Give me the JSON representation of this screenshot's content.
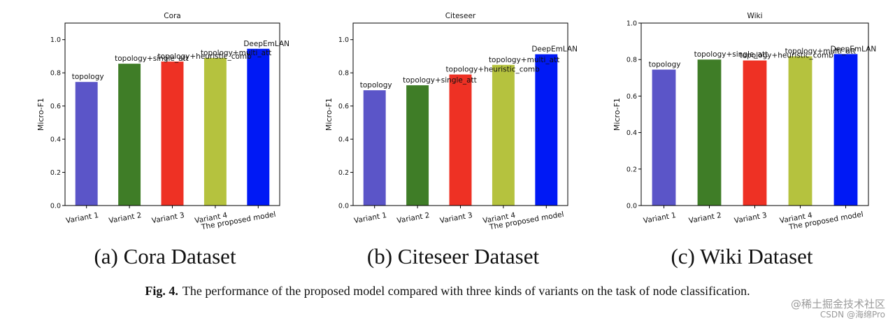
{
  "chart_data": [
    {
      "type": "bar",
      "title": "Cora",
      "ylabel": "Micro-F1",
      "xlabel": "",
      "ylim": [
        0,
        1.1
      ],
      "yticks": [
        "0.0",
        "0.2",
        "0.4",
        "0.6",
        "0.8",
        "1.0"
      ],
      "categories": [
        "Variant 1",
        "Variant 2",
        "Variant 3",
        "Variant 4",
        "The proposed model"
      ],
      "values": [
        0.745,
        0.855,
        0.868,
        0.89,
        0.945
      ],
      "bar_labels": [
        "topology",
        "topology+single_att",
        "topology+heuristic_comb",
        "topology+multi_att",
        "DeepEmLAN"
      ],
      "colors": [
        "#5b55c8",
        "#3f7d27",
        "#ee3124",
        "#b5c23e",
        "#0019f5"
      ],
      "subcaption": "(a)  Cora Dataset"
    },
    {
      "type": "bar",
      "title": "Citeseer",
      "ylabel": "Micro-F1",
      "xlabel": "",
      "ylim": [
        0,
        1.1
      ],
      "yticks": [
        "0.0",
        "0.2",
        "0.4",
        "0.6",
        "0.8",
        "1.0"
      ],
      "categories": [
        "Variant 1",
        "Variant 2",
        "Variant 3",
        "Variant 4",
        "The proposed model"
      ],
      "values": [
        0.695,
        0.725,
        0.79,
        0.848,
        0.912
      ],
      "bar_labels": [
        "topology",
        "topology+single_att",
        "topology+heuristic_comb",
        "topology+multi_att",
        "DeepEmLAN"
      ],
      "colors": [
        "#5b55c8",
        "#3f7d27",
        "#ee3124",
        "#b5c23e",
        "#0019f5"
      ],
      "subcaption": "(b)  Citeseer Dataset"
    },
    {
      "type": "bar",
      "title": "Wiki",
      "ylabel": "Micro-F1",
      "xlabel": "",
      "ylim": [
        0,
        1.0
      ],
      "yticks": [
        "0.0",
        "0.2",
        "0.4",
        "0.6",
        "0.8",
        "1.0"
      ],
      "categories": [
        "Variant 1",
        "Variant 2",
        "Variant 3",
        "Variant 4",
        "The proposed model"
      ],
      "values": [
        0.745,
        0.8,
        0.795,
        0.818,
        0.83
      ],
      "bar_labels": [
        "topology",
        "topology+single_att",
        "topology+heuristic_comb",
        "topology+multi_att",
        "DeepEmLAN"
      ],
      "colors": [
        "#5b55c8",
        "#3f7d27",
        "#ee3124",
        "#b5c23e",
        "#0019f5"
      ],
      "subcaption": "(c)  Wiki Dataset"
    }
  ],
  "figure": {
    "label": "Fig. 4.",
    "caption": "The performance of the proposed model compared with three kinds of variants on the task of node classification."
  },
  "watermark": {
    "line1": "@稀土掘金技术社区",
    "line2": "CSDN @海绵Pro"
  }
}
